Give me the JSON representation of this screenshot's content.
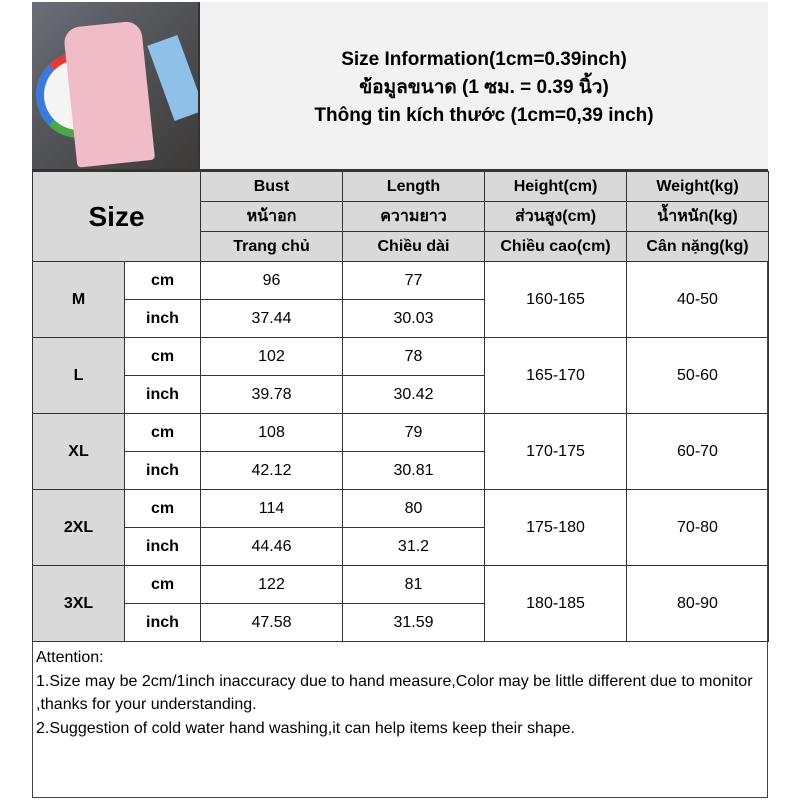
{
  "title": {
    "line1": "Size Information(1cm=0.39inch)",
    "line2": "ข้อมูลขนาด (1 ซม. = 0.39 นิ้ว)",
    "line3": "Thông tin kích thước (1cm=0,39 inch)"
  },
  "header": {
    "size_label": "Size",
    "columns": [
      {
        "en": "Bust",
        "th": "หน้าอก",
        "vi": "Trang chủ"
      },
      {
        "en": "Length",
        "th": "ความยาว",
        "vi": "Chiều dài"
      },
      {
        "en": "Height(cm)",
        "th": "ส่วนสูง(cm)",
        "vi": "Chiều cao(cm)"
      },
      {
        "en": "Weight(kg)",
        "th": "น้ำหนัก(kg)",
        "vi": "Cân nặng(kg)"
      }
    ]
  },
  "units": {
    "cm": "cm",
    "inch": "inch"
  },
  "rows": [
    {
      "size": "M",
      "bust_cm": "96",
      "length_cm": "77",
      "bust_in": "37.44",
      "length_in": "30.03",
      "height": "160-165",
      "weight": "40-50"
    },
    {
      "size": "L",
      "bust_cm": "102",
      "length_cm": "78",
      "bust_in": "39.78",
      "length_in": "30.42",
      "height": "165-170",
      "weight": "50-60"
    },
    {
      "size": "XL",
      "bust_cm": "108",
      "length_cm": "79",
      "bust_in": "42.12",
      "length_in": "30.81",
      "height": "170-175",
      "weight": "60-70"
    },
    {
      "size": "2XL",
      "bust_cm": "114",
      "length_cm": "80",
      "bust_in": "44.46",
      "length_in": "31.2",
      "height": "175-180",
      "weight": "70-80"
    },
    {
      "size": "3XL",
      "bust_cm": "122",
      "length_cm": "81",
      "bust_in": "47.58",
      "length_in": "31.59",
      "height": "180-185",
      "weight": "80-90"
    }
  ],
  "attention": {
    "heading": "Attention:",
    "note1": "1.Size may be 2cm/1inch inaccuracy due to hand measure,Color may be little different due to monitor ,thanks for your understanding.",
    "note2": "2.Suggestion of cold water hand washing,it can help items keep their shape."
  },
  "colors": {
    "header_bg": "#d9d9d9",
    "title_bg": "#f2f2f2",
    "shirt": "#f0bcc8"
  }
}
